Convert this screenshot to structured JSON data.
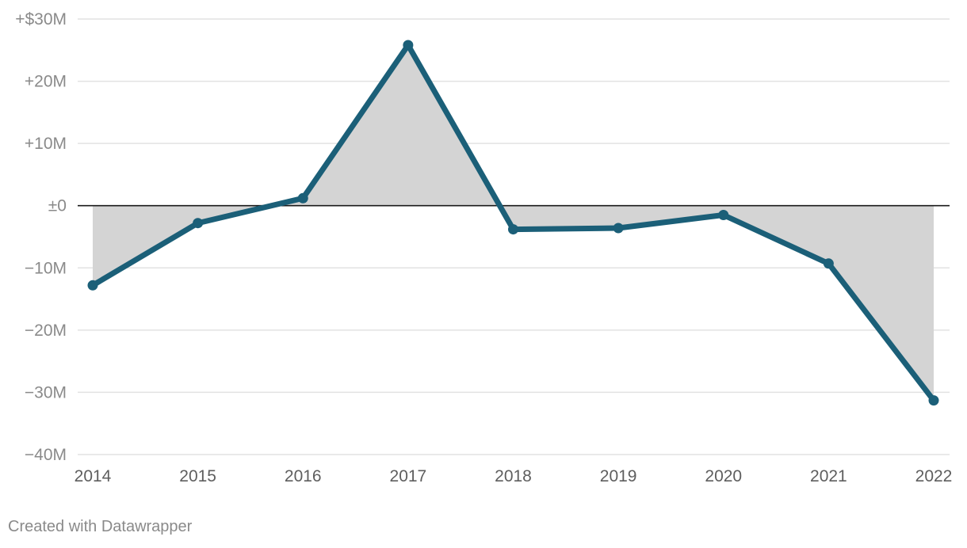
{
  "chart_data": {
    "type": "line",
    "x": [
      2014,
      2015,
      2016,
      2017,
      2018,
      2019,
      2020,
      2021,
      2022
    ],
    "series": [
      {
        "values": [
          -12.8,
          -2.8,
          1.2,
          25.8,
          -3.8,
          -3.6,
          -1.5,
          -9.3,
          -31.3
        ]
      }
    ],
    "xtick_labels": [
      "2014",
      "2015",
      "2016",
      "2017",
      "2018",
      "2019",
      "2020",
      "2021",
      "2022"
    ],
    "yticks": [
      30,
      20,
      10,
      0,
      -10,
      -20,
      -30,
      -40
    ],
    "ytick_labels": [
      "+$30M",
      "+20M",
      "+10M",
      "±0",
      "−10M",
      "−20M",
      "−30M",
      "−40M"
    ],
    "ylim": [
      -40,
      30
    ],
    "xlim": [
      2014,
      2022
    ],
    "grid": true,
    "area_fill_to_zero": true,
    "colors": {
      "line": "#1b5f78",
      "area": "#d4d4d4",
      "grid": "#e2e2e2",
      "zero_line": "#1a1a1a",
      "tick_label": "#8a8a8a",
      "x_tick_label": "#5e5e5e"
    }
  },
  "footer": {
    "credit": "Created with Datawrapper"
  }
}
